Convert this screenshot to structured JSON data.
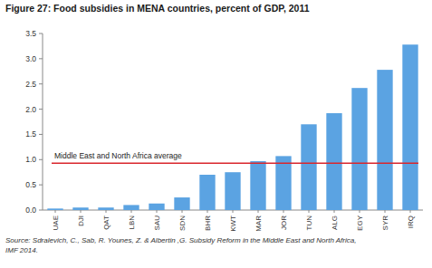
{
  "chart_data": {
    "type": "bar",
    "title": "Figure 27: Food subsidies in MENA countries, percent of GDP, 2011",
    "categories": [
      "UAE",
      "DJI",
      "QAT",
      "LBN",
      "SAU",
      "SDN",
      "BHR",
      "KWT",
      "MAR",
      "JOR",
      "TUN",
      "ALG",
      "EGY",
      "SYR",
      "IRQ"
    ],
    "values": [
      0.03,
      0.05,
      0.05,
      0.1,
      0.13,
      0.25,
      0.7,
      0.75,
      0.97,
      1.07,
      1.7,
      1.92,
      2.42,
      2.78,
      3.28
    ],
    "color": "#5ba3e2",
    "ylim": [
      0,
      3.5
    ],
    "yticks": [
      {
        "value": 0,
        "label": "0.0"
      },
      0.5,
      {
        "value": 1,
        "label": "1.0"
      },
      1.5,
      {
        "value": 2,
        "label": "2.0"
      },
      2.5,
      {
        "value": 3,
        "label": "3.0"
      },
      3.5
    ],
    "grid": false,
    "average": {
      "label": "Middle East and North Africa average",
      "value": 0.93,
      "color": "#d9262c"
    },
    "source": [
      "Source: Sdralevich, C., Sab, R. Younes, Z. & Albertin ,G. Subsidy Reform in the Middle East and North Africa,",
      "IMF 2014."
    ]
  }
}
